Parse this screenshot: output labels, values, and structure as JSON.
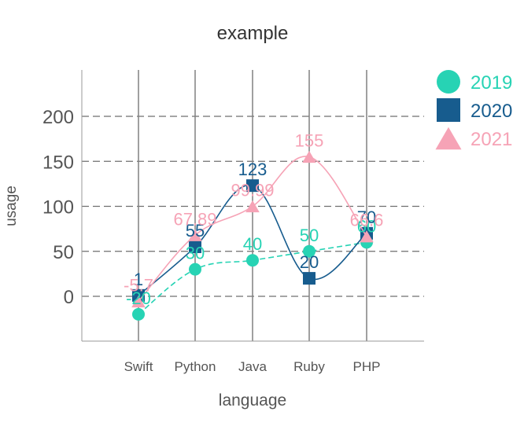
{
  "chart_data": {
    "type": "line",
    "title": "example",
    "xlabel": "language",
    "ylabel": "usage",
    "categories": [
      "Swift",
      "Python",
      "Java",
      "Ruby",
      "PHP"
    ],
    "ylim": [
      -50,
      250
    ],
    "yticks": [
      0,
      50,
      100,
      150,
      200
    ],
    "grid": "horizontal dashed, vertical solid",
    "legend_position": "top-right",
    "series": [
      {
        "name": "2019",
        "values": [
          -20,
          30,
          40,
          50,
          60
        ],
        "labels": [
          "-20",
          "30",
          "40",
          "50",
          "60"
        ],
        "color": "#27d3b4",
        "marker": "circle",
        "line": "dashed",
        "smooth": true
      },
      {
        "name": "2020",
        "values": [
          1,
          55,
          123,
          20,
          70
        ],
        "labels": [
          "1",
          "55",
          "123",
          "20",
          "70"
        ],
        "color": "#175c8e",
        "marker": "square",
        "line": "solid",
        "smooth": true
      },
      {
        "name": "2021",
        "values": [
          -5.7,
          67.89,
          99.99,
          155,
          66.6
        ],
        "labels": [
          "-5.7",
          "67.89",
          "99.99",
          "155",
          "66.6"
        ],
        "color": "#f6a3b6",
        "marker": "triangle",
        "line": "solid",
        "smooth": true
      }
    ]
  }
}
